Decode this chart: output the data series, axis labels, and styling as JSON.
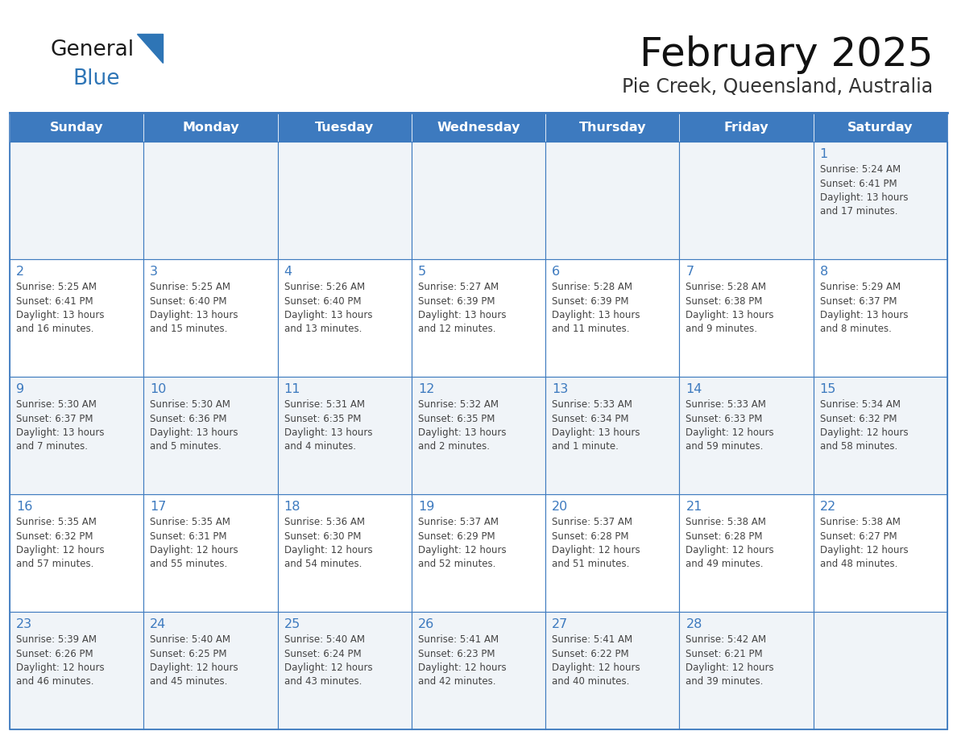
{
  "title": "February 2025",
  "subtitle": "Pie Creek, Queensland, Australia",
  "days_of_week": [
    "Sunday",
    "Monday",
    "Tuesday",
    "Wednesday",
    "Thursday",
    "Friday",
    "Saturday"
  ],
  "header_bg": "#3D7ABF",
  "header_text": "#FFFFFF",
  "cell_bg_odd": "#FFFFFF",
  "cell_bg_even": "#F0F4F8",
  "cell_border": "#3D7ABF",
  "day_number_color": "#3D7ABF",
  "text_color": "#444444",
  "title_color": "#111111",
  "subtitle_color": "#333333",
  "logo_general_color": "#1a1a1a",
  "logo_blue_color": "#2E75B6",
  "calendar": [
    [
      null,
      null,
      null,
      null,
      null,
      null,
      1
    ],
    [
      2,
      3,
      4,
      5,
      6,
      7,
      8
    ],
    [
      9,
      10,
      11,
      12,
      13,
      14,
      15
    ],
    [
      16,
      17,
      18,
      19,
      20,
      21,
      22
    ],
    [
      23,
      24,
      25,
      26,
      27,
      28,
      null
    ]
  ],
  "sunrise": {
    "1": "5:24 AM",
    "2": "5:25 AM",
    "3": "5:25 AM",
    "4": "5:26 AM",
    "5": "5:27 AM",
    "6": "5:28 AM",
    "7": "5:28 AM",
    "8": "5:29 AM",
    "9": "5:30 AM",
    "10": "5:30 AM",
    "11": "5:31 AM",
    "12": "5:32 AM",
    "13": "5:33 AM",
    "14": "5:33 AM",
    "15": "5:34 AM",
    "16": "5:35 AM",
    "17": "5:35 AM",
    "18": "5:36 AM",
    "19": "5:37 AM",
    "20": "5:37 AM",
    "21": "5:38 AM",
    "22": "5:38 AM",
    "23": "5:39 AM",
    "24": "5:40 AM",
    "25": "5:40 AM",
    "26": "5:41 AM",
    "27": "5:41 AM",
    "28": "5:42 AM"
  },
  "sunset": {
    "1": "6:41 PM",
    "2": "6:41 PM",
    "3": "6:40 PM",
    "4": "6:40 PM",
    "5": "6:39 PM",
    "6": "6:39 PM",
    "7": "6:38 PM",
    "8": "6:37 PM",
    "9": "6:37 PM",
    "10": "6:36 PM",
    "11": "6:35 PM",
    "12": "6:35 PM",
    "13": "6:34 PM",
    "14": "6:33 PM",
    "15": "6:32 PM",
    "16": "6:32 PM",
    "17": "6:31 PM",
    "18": "6:30 PM",
    "19": "6:29 PM",
    "20": "6:28 PM",
    "21": "6:28 PM",
    "22": "6:27 PM",
    "23": "6:26 PM",
    "24": "6:25 PM",
    "25": "6:24 PM",
    "26": "6:23 PM",
    "27": "6:22 PM",
    "28": "6:21 PM"
  },
  "daylight": {
    "1": "13 hours and 17 minutes.",
    "2": "13 hours and 16 minutes.",
    "3": "13 hours and 15 minutes.",
    "4": "13 hours and 13 minutes.",
    "5": "13 hours and 12 minutes.",
    "6": "13 hours and 11 minutes.",
    "7": "13 hours and 9 minutes.",
    "8": "13 hours and 8 minutes.",
    "9": "13 hours and 7 minutes.",
    "10": "13 hours and 5 minutes.",
    "11": "13 hours and 4 minutes.",
    "12": "13 hours and 2 minutes.",
    "13": "13 hours and 1 minute.",
    "14": "12 hours and 59 minutes.",
    "15": "12 hours and 58 minutes.",
    "16": "12 hours and 57 minutes.",
    "17": "12 hours and 55 minutes.",
    "18": "12 hours and 54 minutes.",
    "19": "12 hours and 52 minutes.",
    "20": "12 hours and 51 minutes.",
    "21": "12 hours and 49 minutes.",
    "22": "12 hours and 48 minutes.",
    "23": "12 hours and 46 minutes.",
    "24": "12 hours and 45 minutes.",
    "25": "12 hours and 43 minutes.",
    "26": "12 hours and 42 minutes.",
    "27": "12 hours and 40 minutes.",
    "28": "12 hours and 39 minutes."
  }
}
